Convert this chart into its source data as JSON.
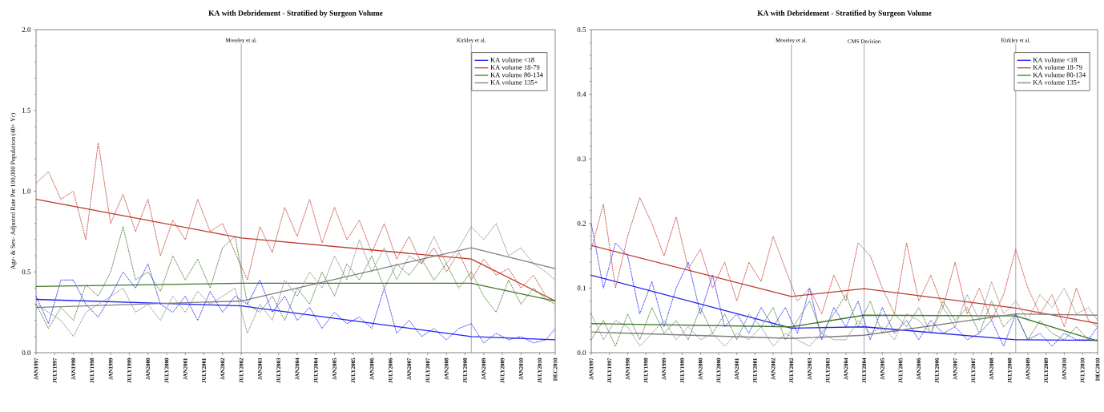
{
  "chart_data": [
    {
      "type": "line",
      "title": "KA with Debridement - Stratified by Surgeon Volume",
      "ylabel": "Age- & Sex- Adjusted Rate Per 100,000 Population (40+ Yr)",
      "x": [
        "1997-01",
        "1997-05",
        "1997-09",
        "1998-01",
        "1998-05",
        "1998-09",
        "1999-01",
        "1999-05",
        "1999-09",
        "2000-01",
        "2000-05",
        "2000-09",
        "2001-01",
        "2001-05",
        "2001-09",
        "2002-01",
        "2002-05",
        "2002-09",
        "2003-01",
        "2003-05",
        "2003-09",
        "2004-01",
        "2004-05",
        "2004-09",
        "2005-01",
        "2005-05",
        "2005-09",
        "2006-01",
        "2006-05",
        "2006-09",
        "2007-01",
        "2007-05",
        "2007-09",
        "2008-01",
        "2008-05",
        "2008-09",
        "2009-01",
        "2009-05",
        "2009-09",
        "2010-01",
        "2010-05",
        "2010-09",
        "2010-12"
      ],
      "xlim": [
        "1997-01",
        "2010-12"
      ],
      "xticks": [
        {
          "value": "1997-01",
          "label": "JAN1997"
        },
        {
          "value": "1997-07",
          "label": "JULY1997"
        },
        {
          "value": "1998-01",
          "label": "JAN1998"
        },
        {
          "value": "1998-07",
          "label": "JULY1998"
        },
        {
          "value": "1999-01",
          "label": "JAN1999"
        },
        {
          "value": "1999-07",
          "label": "JULY1999"
        },
        {
          "value": "2000-01",
          "label": "JAN2000"
        },
        {
          "value": "2000-07",
          "label": "JULY2000"
        },
        {
          "value": "2001-01",
          "label": "JAN2001"
        },
        {
          "value": "2001-07",
          "label": "JULY2001"
        },
        {
          "value": "2002-01",
          "label": "JAN2002"
        },
        {
          "value": "2002-07",
          "label": "JULY2002"
        },
        {
          "value": "2003-01",
          "label": "JAN2003"
        },
        {
          "value": "2003-07",
          "label": "JULY2003"
        },
        {
          "value": "2004-01",
          "label": "JAN2004"
        },
        {
          "value": "2004-07",
          "label": "JULY2004"
        },
        {
          "value": "2005-01",
          "label": "JAN2005"
        },
        {
          "value": "2005-07",
          "label": "JULY2005"
        },
        {
          "value": "2006-01",
          "label": "JAN2006"
        },
        {
          "value": "2006-07",
          "label": "JULY2006"
        },
        {
          "value": "2007-01",
          "label": "JAN2007"
        },
        {
          "value": "2007-07",
          "label": "JULY2007"
        },
        {
          "value": "2008-01",
          "label": "JAN2008"
        },
        {
          "value": "2008-07",
          "label": "JULY2008"
        },
        {
          "value": "2009-01",
          "label": "JAN2009"
        },
        {
          "value": "2009-07",
          "label": "JULY2009"
        },
        {
          "value": "2010-01",
          "label": "JAN2010"
        },
        {
          "value": "2010-07",
          "label": "JULY2010"
        },
        {
          "value": "2010-12",
          "label": "DEC2010"
        }
      ],
      "ylim": [
        0,
        2
      ],
      "yticks": [
        {
          "value": 0,
          "label": "0.0"
        },
        {
          "value": 0.5,
          "label": "0.5"
        },
        {
          "value": 1,
          "label": "1.0"
        },
        {
          "value": 1.5,
          "label": "1.5"
        },
        {
          "value": 2,
          "label": "2.0"
        }
      ],
      "legend": "top right",
      "ref_lines": [
        {
          "axis": "x",
          "value": "2002-07",
          "label": "Moseley et al.",
          "color": "#808080"
        },
        {
          "axis": "x",
          "value": "2008-09",
          "label": "Kirkley et al.",
          "color": "#808080"
        }
      ],
      "series": [
        {
          "name": "KA volume <18",
          "color": "#2020f0",
          "line_style": "solid",
          "x": [
            "1997-01",
            "2002-07",
            "2008-09",
            "2010-12"
          ],
          "values": [
            0.33,
            0.29,
            0.1,
            0.08
          ]
        },
        {
          "name": "KA volume 18-79",
          "color": "#c0392b",
          "line_style": "solid",
          "x": [
            "1997-01",
            "2002-07",
            "2008-09",
            "2010-12"
          ],
          "values": [
            0.95,
            0.71,
            0.58,
            0.32
          ]
        },
        {
          "name": "KA volume 80-134",
          "color": "#3d7a2a",
          "line_style": "solid",
          "x": [
            "1997-01",
            "2002-07",
            "2008-09",
            "2010-12"
          ],
          "values": [
            0.41,
            0.43,
            0.43,
            0.32
          ]
        },
        {
          "name": "KA volume 135+",
          "color": "#808080",
          "line_style": "solid",
          "x": [
            "1997-01",
            "2002-07",
            "2008-09",
            "2010-12"
          ],
          "values": [
            0.28,
            0.32,
            0.65,
            0.52
          ]
        },
        {
          "color": "#2020f0",
          "line_style": "dotted",
          "values": [
            0.35,
            0.18,
            0.45,
            0.45,
            0.3,
            0.22,
            0.35,
            0.5,
            0.4,
            0.55,
            0.3,
            0.25,
            0.35,
            0.2,
            0.38,
            0.25,
            0.35,
            0.3,
            0.45,
            0.25,
            0.35,
            0.2,
            0.28,
            0.15,
            0.25,
            0.18,
            0.22,
            0.15,
            0.4,
            0.12,
            0.2,
            0.1,
            0.15,
            0.08,
            0.15,
            0.18,
            0.06,
            0.12,
            0.08,
            0.1,
            0.06,
            0.08,
            0.15
          ]
        },
        {
          "color": "#c0392b",
          "line_style": "dotted",
          "values": [
            1.05,
            1.12,
            0.95,
            1.0,
            0.7,
            1.3,
            0.8,
            0.98,
            0.75,
            0.95,
            0.6,
            0.82,
            0.7,
            0.95,
            0.75,
            0.8,
            0.62,
            0.45,
            0.78,
            0.62,
            0.9,
            0.72,
            0.95,
            0.68,
            0.9,
            0.7,
            0.82,
            0.62,
            0.8,
            0.58,
            0.72,
            0.55,
            0.65,
            0.5,
            0.62,
            0.45,
            0.58,
            0.48,
            0.52,
            0.4,
            0.48,
            0.35,
            0.32
          ]
        },
        {
          "color": "#3d7a2a",
          "line_style": "dotted",
          "values": [
            0.3,
            0.15,
            0.28,
            0.2,
            0.42,
            0.35,
            0.5,
            0.78,
            0.45,
            0.5,
            0.38,
            0.6,
            0.45,
            0.58,
            0.4,
            0.65,
            0.72,
            0.3,
            0.25,
            0.35,
            0.2,
            0.4,
            0.3,
            0.5,
            0.35,
            0.55,
            0.45,
            0.6,
            0.4,
            0.55,
            0.48,
            0.58,
            0.45,
            0.55,
            0.4,
            0.5,
            0.35,
            0.25,
            0.45,
            0.3,
            0.4,
            0.33,
            0.3
          ]
        },
        {
          "color": "#808080",
          "line_style": "dotted",
          "values": [
            0.3,
            0.25,
            0.2,
            0.1,
            0.25,
            0.3,
            0.35,
            0.4,
            0.25,
            0.3,
            0.2,
            0.35,
            0.25,
            0.38,
            0.3,
            0.35,
            0.4,
            0.12,
            0.3,
            0.2,
            0.45,
            0.35,
            0.5,
            0.4,
            0.6,
            0.45,
            0.7,
            0.5,
            0.65,
            0.45,
            0.6,
            0.55,
            0.72,
            0.55,
            0.65,
            0.78,
            0.7,
            0.8,
            0.6,
            0.65,
            0.55,
            0.5,
            0.45
          ]
        }
      ]
    },
    {
      "type": "line",
      "title": "KA with Debridement - Stratified by Surgeon Volume",
      "x": [
        "1997-01",
        "1997-05",
        "1997-09",
        "1998-01",
        "1998-05",
        "1998-09",
        "1999-01",
        "1999-05",
        "1999-09",
        "2000-01",
        "2000-05",
        "2000-09",
        "2001-01",
        "2001-05",
        "2001-09",
        "2002-01",
        "2002-05",
        "2002-09",
        "2003-01",
        "2003-05",
        "2003-09",
        "2004-01",
        "2004-05",
        "2004-09",
        "2005-01",
        "2005-05",
        "2005-09",
        "2006-01",
        "2006-05",
        "2006-09",
        "2007-01",
        "2007-05",
        "2007-09",
        "2008-01",
        "2008-05",
        "2008-09",
        "2009-01",
        "2009-05",
        "2009-09",
        "2010-01",
        "2010-05",
        "2010-09",
        "2010-12"
      ],
      "xlim": [
        "1997-01",
        "2010-12"
      ],
      "xticks": [
        {
          "value": "1997-01",
          "label": "JAN1997"
        },
        {
          "value": "1997-07",
          "label": "JULY1997"
        },
        {
          "value": "1998-01",
          "label": "JAN1998"
        },
        {
          "value": "1998-07",
          "label": "JULY1998"
        },
        {
          "value": "1999-01",
          "label": "JAN1999"
        },
        {
          "value": "1999-07",
          "label": "JULY1999"
        },
        {
          "value": "2000-01",
          "label": "JAN2000"
        },
        {
          "value": "2000-07",
          "label": "JULY2000"
        },
        {
          "value": "2001-01",
          "label": "JAN2001"
        },
        {
          "value": "2001-07",
          "label": "JULY2001"
        },
        {
          "value": "2002-01",
          "label": "JAN2002"
        },
        {
          "value": "2002-07",
          "label": "JULY2002"
        },
        {
          "value": "2003-01",
          "label": "JAN2003"
        },
        {
          "value": "2003-07",
          "label": "JULY2003"
        },
        {
          "value": "2004-01",
          "label": "JAN2004"
        },
        {
          "value": "2004-07",
          "label": "JULY2004"
        },
        {
          "value": "2005-01",
          "label": "JAN2005"
        },
        {
          "value": "2005-07",
          "label": "JULY2005"
        },
        {
          "value": "2006-01",
          "label": "JAN2006"
        },
        {
          "value": "2006-07",
          "label": "JULY2006"
        },
        {
          "value": "2007-01",
          "label": "JAN2007"
        },
        {
          "value": "2007-07",
          "label": "JULY2007"
        },
        {
          "value": "2008-01",
          "label": "JAN2008"
        },
        {
          "value": "2008-07",
          "label": "JULY2008"
        },
        {
          "value": "2009-01",
          "label": "JAN2009"
        },
        {
          "value": "2009-07",
          "label": "JULY2009"
        },
        {
          "value": "2010-01",
          "label": "JAN2010"
        },
        {
          "value": "2010-07",
          "label": "JULY2010"
        },
        {
          "value": "2010-12",
          "label": "DEC2010"
        }
      ],
      "ylim": [
        0,
        0.5
      ],
      "yticks": [
        {
          "value": 0,
          "label": "0.0"
        },
        0.1,
        0.2,
        0.3,
        0.4,
        0.5
      ],
      "legend": "top right",
      "ref_lines": [
        {
          "axis": "x",
          "value": "2002-07",
          "label": "Moseley et al.",
          "color": "#808080"
        },
        {
          "axis": "x",
          "value": "2004-07",
          "label": "CMS Decision",
          "color": "#808080"
        },
        {
          "axis": "x",
          "value": "2008-09",
          "label": "Kirkley et al.",
          "color": "#808080"
        }
      ],
      "series": [
        {
          "name": "KA volume <18",
          "color": "#2020f0",
          "line_style": "solid",
          "x": [
            "1997-01",
            "2002-07",
            "2004-07",
            "2008-09",
            "2010-12"
          ],
          "values": [
            0.12,
            0.038,
            0.04,
            0.02,
            0.019
          ]
        },
        {
          "name": "KA volume 18-79",
          "color": "#c0392b",
          "line_style": "solid",
          "x": [
            "1997-01",
            "2002-07",
            "2004-07",
            "2008-09",
            "2010-12"
          ],
          "values": [
            0.166,
            0.087,
            0.099,
            0.069,
            0.045
          ]
        },
        {
          "name": "KA volume 80-134",
          "color": "#3d7a2a",
          "line_style": "solid",
          "x": [
            "1997-01",
            "2002-07",
            "2004-07",
            "2008-09",
            "2010-12"
          ],
          "values": [
            0.045,
            0.04,
            0.058,
            0.057,
            0.018
          ]
        },
        {
          "name": "KA volume 135+",
          "color": "#808080",
          "line_style": "solid",
          "x": [
            "1997-01",
            "2002-07",
            "2004-07",
            "2008-09",
            "2010-12"
          ],
          "values": [
            0.032,
            0.022,
            0.027,
            0.06,
            0.058
          ]
        },
        {
          "color": "#2020f0",
          "line_style": "dotted",
          "values": [
            0.2,
            0.1,
            0.17,
            0.15,
            0.06,
            0.11,
            0.04,
            0.1,
            0.14,
            0.06,
            0.12,
            0.04,
            0.06,
            0.03,
            0.07,
            0.04,
            0.07,
            0.03,
            0.1,
            0.02,
            0.07,
            0.04,
            0.08,
            0.02,
            0.07,
            0.03,
            0.05,
            0.02,
            0.05,
            0.03,
            0.04,
            0.02,
            0.03,
            0.05,
            0.01,
            0.06,
            0.02,
            0.03,
            0.01,
            0.03,
            0.02,
            0.02,
            0.04
          ]
        },
        {
          "color": "#c0392b",
          "line_style": "dotted",
          "values": [
            0.16,
            0.23,
            0.1,
            0.18,
            0.24,
            0.2,
            0.15,
            0.21,
            0.13,
            0.16,
            0.1,
            0.14,
            0.08,
            0.14,
            0.11,
            0.18,
            0.13,
            0.08,
            0.1,
            0.06,
            0.12,
            0.08,
            0.17,
            0.15,
            0.1,
            0.06,
            0.17,
            0.08,
            0.12,
            0.07,
            0.14,
            0.06,
            0.1,
            0.05,
            0.09,
            0.16,
            0.1,
            0.06,
            0.09,
            0.04,
            0.1,
            0.05,
            0.04
          ]
        },
        {
          "color": "#3d7a2a",
          "line_style": "dotted",
          "values": [
            0.02,
            0.05,
            0.01,
            0.06,
            0.02,
            0.07,
            0.03,
            0.05,
            0.02,
            0.07,
            0.03,
            0.06,
            0.02,
            0.06,
            0.04,
            0.07,
            0.02,
            0.05,
            0.08,
            0.03,
            0.06,
            0.09,
            0.04,
            0.08,
            0.03,
            0.06,
            0.04,
            0.07,
            0.03,
            0.08,
            0.05,
            0.07,
            0.03,
            0.08,
            0.04,
            0.06,
            0.02,
            0.05,
            0.03,
            0.02,
            0.04,
            0.02,
            0.02
          ]
        },
        {
          "color": "#808080",
          "line_style": "dotted",
          "values": [
            0.06,
            0.02,
            0.05,
            0.04,
            0.01,
            0.03,
            0.05,
            0.02,
            0.04,
            0.02,
            0.03,
            0.01,
            0.03,
            0.02,
            0.04,
            0.01,
            0.03,
            0.02,
            0.01,
            0.03,
            0.02,
            0.02,
            0.05,
            0.03,
            0.04,
            0.02,
            0.06,
            0.05,
            0.03,
            0.07,
            0.04,
            0.09,
            0.05,
            0.11,
            0.06,
            0.08,
            0.05,
            0.09,
            0.07,
            0.1,
            0.06,
            0.07,
            0.05
          ]
        }
      ]
    }
  ]
}
